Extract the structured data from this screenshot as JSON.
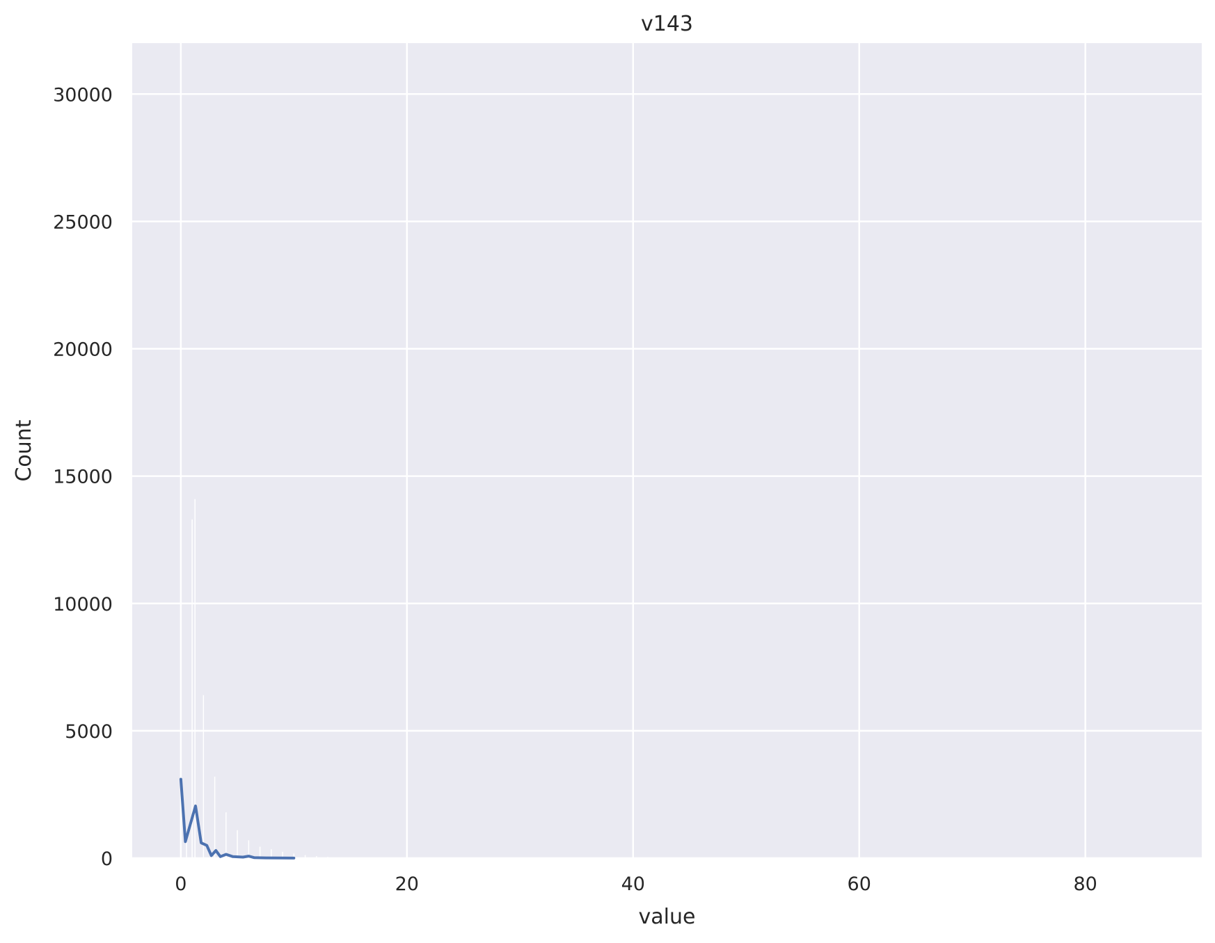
{
  "chart_data": {
    "type": "line",
    "title": "v143",
    "xlabel": "value",
    "ylabel": "Count",
    "xlim": [
      -4.3,
      90.3
    ],
    "ylim": [
      0,
      32000
    ],
    "x_ticks": [
      0,
      20,
      40,
      60,
      80
    ],
    "y_ticks": [
      0,
      5000,
      10000,
      15000,
      20000,
      25000,
      30000
    ],
    "grid": true,
    "background": "#eaeaf2",
    "grid_color": "#ffffff",
    "histogram": {
      "color": "#ffffff",
      "bars": [
        {
          "x": 0.0,
          "count": 3100
        },
        {
          "x": 0.5,
          "count": 700
        },
        {
          "x": 1.0,
          "count": 13300
        },
        {
          "x": 1.25,
          "count": 14100
        },
        {
          "x": 2.0,
          "count": 6400
        },
        {
          "x": 3.0,
          "count": 3200
        },
        {
          "x": 4.0,
          "count": 1800
        },
        {
          "x": 5.0,
          "count": 1100
        },
        {
          "x": 6.0,
          "count": 700
        },
        {
          "x": 7.0,
          "count": 450
        },
        {
          "x": 8.0,
          "count": 350
        },
        {
          "x": 9.0,
          "count": 250
        },
        {
          "x": 10.0,
          "count": 180
        },
        {
          "x": 11.0,
          "count": 120
        },
        {
          "x": 12.0,
          "count": 80
        },
        {
          "x": 13.0,
          "count": 50
        }
      ]
    },
    "series": [
      {
        "color": "#4c72b0",
        "points": [
          {
            "x": 0.0,
            "y": 3100
          },
          {
            "x": 0.4,
            "y": 650
          },
          {
            "x": 1.3,
            "y": 2050
          },
          {
            "x": 1.8,
            "y": 600
          },
          {
            "x": 2.3,
            "y": 500
          },
          {
            "x": 2.7,
            "y": 100
          },
          {
            "x": 3.1,
            "y": 300
          },
          {
            "x": 3.5,
            "y": 60
          },
          {
            "x": 4.0,
            "y": 150
          },
          {
            "x": 4.6,
            "y": 60
          },
          {
            "x": 5.5,
            "y": 40
          },
          {
            "x": 6.0,
            "y": 80
          },
          {
            "x": 6.5,
            "y": 20
          },
          {
            "x": 7.5,
            "y": 10
          },
          {
            "x": 9.0,
            "y": 5
          },
          {
            "x": 10.0,
            "y": 2
          }
        ]
      }
    ]
  }
}
